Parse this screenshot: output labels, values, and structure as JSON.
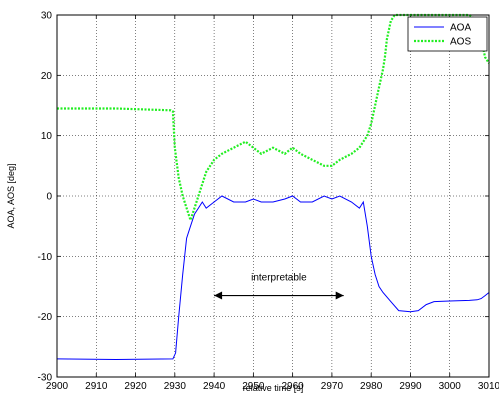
{
  "chart_data": {
    "type": "line",
    "xlabel": "relative time [s]",
    "ylabel": "AOA, AOS [deg]",
    "xlim": [
      2900,
      3010
    ],
    "ylim": [
      -30,
      30
    ],
    "x_ticks": [
      "2900",
      "2910",
      "2920",
      "2930",
      "2940",
      "2950",
      "2960",
      "2970",
      "2980",
      "2990",
      "3000",
      "3010"
    ],
    "y_ticks": [
      "-30",
      "-20",
      "-10",
      "0",
      "10",
      "20",
      "30"
    ],
    "grid": true,
    "legend_position": "top-right",
    "series": [
      {
        "name": "AOA",
        "color": "#0000ff",
        "style": "solid",
        "points": [
          [
            2900,
            -27
          ],
          [
            2915,
            -27.1
          ],
          [
            2929.5,
            -27
          ],
          [
            2930.2,
            -26
          ],
          [
            2931,
            -20
          ],
          [
            2932,
            -13
          ],
          [
            2933,
            -7
          ],
          [
            2934,
            -5
          ],
          [
            2935,
            -3
          ],
          [
            2936,
            -2
          ],
          [
            2937,
            -1
          ],
          [
            2938,
            -2
          ],
          [
            2940,
            -1
          ],
          [
            2942,
            0
          ],
          [
            2945,
            -1
          ],
          [
            2948,
            -1
          ],
          [
            2950,
            -0.5
          ],
          [
            2952,
            -1
          ],
          [
            2955,
            -1
          ],
          [
            2958,
            -0.5
          ],
          [
            2960,
            0
          ],
          [
            2962,
            -1
          ],
          [
            2965,
            -1
          ],
          [
            2968,
            0
          ],
          [
            2970,
            -0.5
          ],
          [
            2972,
            0
          ],
          [
            2975,
            -1
          ],
          [
            2977,
            -2
          ],
          [
            2978,
            -1
          ],
          [
            2979,
            -5
          ],
          [
            2980,
            -10
          ],
          [
            2981,
            -13
          ],
          [
            2982,
            -15
          ],
          [
            2983,
            -16
          ],
          [
            2985,
            -17.5
          ],
          [
            2987,
            -19
          ],
          [
            2990,
            -19.2
          ],
          [
            2992,
            -19
          ],
          [
            2994,
            -18
          ],
          [
            2996,
            -17.5
          ],
          [
            3000,
            -17.4
          ],
          [
            3005,
            -17.3
          ],
          [
            3007,
            -17.2
          ],
          [
            3008,
            -17
          ],
          [
            3009,
            -16.5
          ],
          [
            3010,
            -16
          ]
        ]
      },
      {
        "name": "AOS",
        "color": "#22ee22",
        "style": "dotted",
        "points": [
          [
            2900,
            14.5
          ],
          [
            2915,
            14.5
          ],
          [
            2929,
            14.2
          ],
          [
            2929.5,
            14
          ],
          [
            2930,
            8
          ],
          [
            2931,
            3
          ],
          [
            2932,
            0
          ],
          [
            2933,
            -2
          ],
          [
            2934,
            -4
          ],
          [
            2935,
            -2
          ],
          [
            2936,
            0
          ],
          [
            2937,
            2
          ],
          [
            2938,
            4
          ],
          [
            2940,
            6
          ],
          [
            2942,
            7
          ],
          [
            2945,
            8
          ],
          [
            2948,
            9
          ],
          [
            2950,
            8
          ],
          [
            2952,
            7
          ],
          [
            2955,
            8
          ],
          [
            2958,
            7
          ],
          [
            2960,
            8
          ],
          [
            2962,
            7
          ],
          [
            2965,
            6
          ],
          [
            2968,
            5
          ],
          [
            2970,
            5
          ],
          [
            2972,
            6
          ],
          [
            2975,
            7
          ],
          [
            2977,
            8
          ],
          [
            2978,
            9
          ],
          [
            2979,
            10
          ],
          [
            2980,
            12
          ],
          [
            2981,
            15
          ],
          [
            2982,
            18
          ],
          [
            2983,
            21
          ],
          [
            2983.5,
            23
          ],
          [
            2984,
            26
          ],
          [
            2985,
            29
          ],
          [
            2986,
            30
          ],
          [
            3000,
            30
          ],
          [
            3005,
            30
          ],
          [
            3006,
            29.5
          ],
          [
            3007,
            28
          ],
          [
            3008,
            26
          ],
          [
            3009,
            23
          ],
          [
            3010,
            22
          ]
        ]
      }
    ],
    "annotations": [
      {
        "text": "interpretable",
        "arrow_from_x": 2940,
        "arrow_to_x": 2973,
        "y": -16.5,
        "text_y": -14
      }
    ]
  }
}
